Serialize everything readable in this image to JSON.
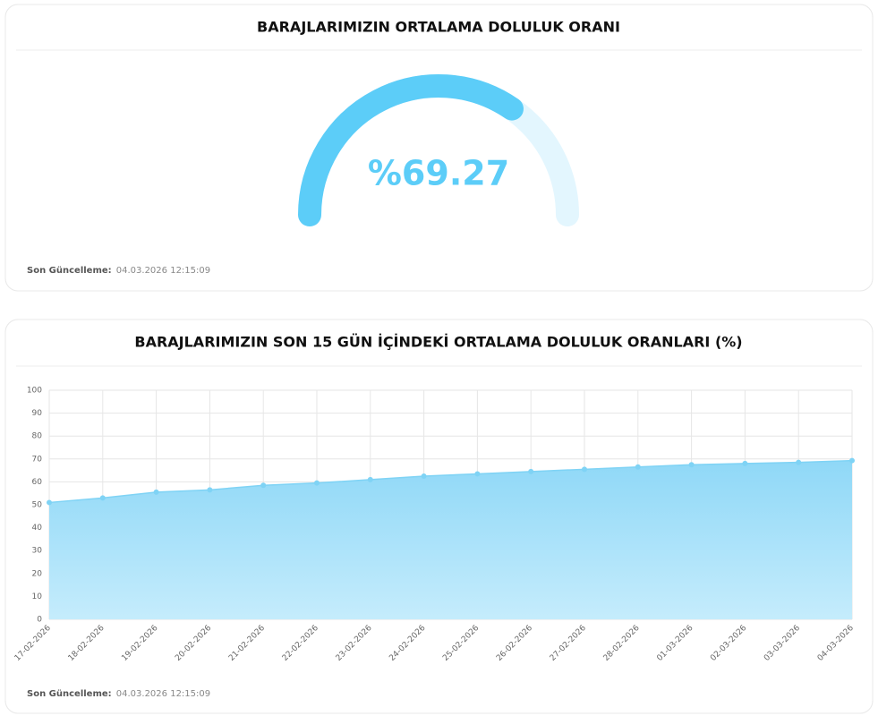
{
  "chart_data": [
    {
      "type": "gauge",
      "title": "BARAJLARIMIZIN ORTALAMA DOLULUK ORANI",
      "value": 69.27,
      "value_label": "%69.27",
      "range": [
        0,
        100
      ],
      "color": "#5ccdf8",
      "track_color": "#e3f6fe",
      "footer_label": "Son Güncelleme:",
      "footer_value": "04.03.2026 12:15:09"
    },
    {
      "type": "area",
      "title": "BARAJLARIMIZIN SON 15 GÜN İÇİNDEKİ ORTALAMA DOLULUK ORANLARI (%)",
      "categories": [
        "17-02-2026",
        "18-02-2026",
        "19-02-2026",
        "20-02-2026",
        "21-02-2026",
        "22-02-2026",
        "23-02-2026",
        "24-02-2026",
        "25-02-2026",
        "26-02-2026",
        "27-02-2026",
        "28-02-2026",
        "01-03-2026",
        "02-03-2026",
        "03-03-2026",
        "04-03-2026"
      ],
      "values": [
        51,
        53,
        55.5,
        56.5,
        58.5,
        59.5,
        61,
        62.5,
        63.5,
        64.5,
        65.5,
        66.5,
        67.5,
        68,
        68.5,
        69.27
      ],
      "color": "#7fd3f5",
      "ylim": [
        0,
        100
      ],
      "yticks": [
        0,
        10,
        20,
        30,
        40,
        50,
        60,
        70,
        80,
        90,
        100
      ],
      "grid": true,
      "footer_label": "Son Güncelleme:",
      "footer_value": "04.03.2026 12:15:09"
    }
  ]
}
